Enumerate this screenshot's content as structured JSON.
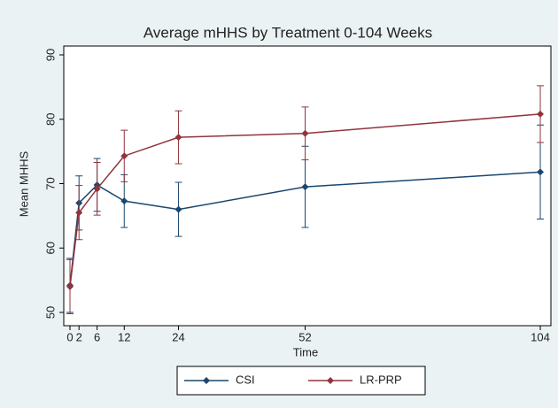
{
  "chart_data": {
    "type": "line",
    "title": "Average mHHS by Treatment 0-104 Weeks",
    "x_label": "Time",
    "y_label": "Mean MHHS",
    "x": [
      0,
      2,
      6,
      12,
      24,
      52,
      104
    ],
    "series": [
      {
        "name": "CSI",
        "color": "#1a476f",
        "values": [
          54.2,
          67.0,
          69.8,
          67.3,
          66.0,
          69.5,
          71.8
        ],
        "errors": [
          4.2,
          4.2,
          4.1,
          4.1,
          4.2,
          6.3,
          7.3
        ]
      },
      {
        "name": "LR-PRP",
        "color": "#90353b",
        "values": [
          54.0,
          65.5,
          69.2,
          74.3,
          77.2,
          77.8,
          80.8
        ],
        "errors": [
          4.2,
          4.2,
          4.1,
          4.0,
          4.1,
          4.1,
          4.4
        ]
      }
    ],
    "xlim": [
      0,
      104
    ],
    "xticks": [
      0,
      2,
      6,
      12,
      24,
      52,
      104
    ],
    "ylim": [
      50,
      90
    ],
    "yticks": [
      50,
      60,
      70,
      80,
      90
    ],
    "legend": "bottom"
  }
}
